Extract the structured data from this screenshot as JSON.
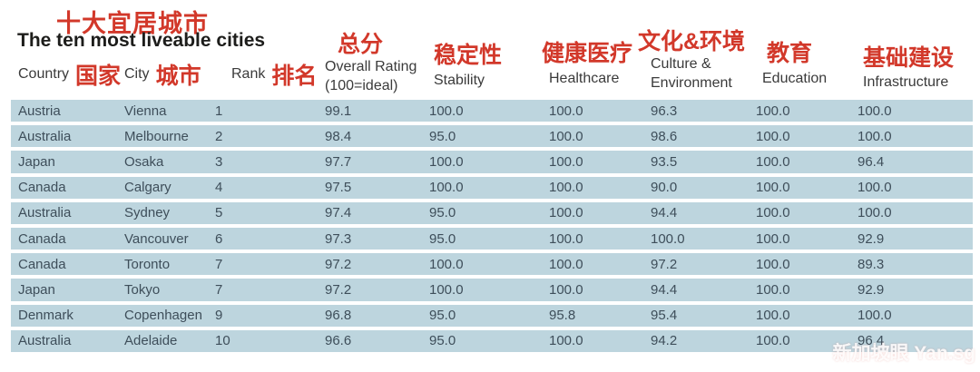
{
  "page": {
    "title_zh": "十大宜居城市",
    "title_en": "The ten most liveable cities"
  },
  "watermark": {
    "text": "新加坡眼 Yan.sg"
  },
  "colors": {
    "accent_red": "#d2382a",
    "row_background": "#bdd5de",
    "body_text": "#3e4e5a",
    "title_black": "#1d1d1b"
  },
  "columns": {
    "country": {
      "en": "Country",
      "zh": "国家"
    },
    "city": {
      "en": "City",
      "zh": "城市"
    },
    "rank": {
      "en": "Rank",
      "zh": "排名"
    },
    "overall": {
      "zh": "总分",
      "en": "Overall Rating",
      "sub": "(100=ideal)"
    },
    "stability": {
      "zh": "稳定性",
      "en": "Stability"
    },
    "healthcare": {
      "zh": "健康医疗",
      "en": "Healthcare"
    },
    "culture": {
      "zh": "文化&环境",
      "en_line1": "Culture &",
      "en_line2": "Environment"
    },
    "education": {
      "zh": "教育",
      "en": "Education"
    },
    "infrastructure": {
      "zh": "基础建设",
      "en": "Infrastructure"
    }
  },
  "chart_data": {
    "type": "table",
    "title": "The ten most liveable cities",
    "columns": [
      "Country",
      "City",
      "Rank",
      "Overall Rating (100=ideal)",
      "Stability",
      "Healthcare",
      "Culture & Environment",
      "Education",
      "Infrastructure"
    ],
    "rows": [
      {
        "country": "Austria",
        "city": "Vienna",
        "rank": "1",
        "overall": "99.1",
        "stability": "100.0",
        "healthcare": "100.0",
        "culture": "96.3",
        "education": "100.0",
        "infrastructure": "100.0"
      },
      {
        "country": "Australia",
        "city": "Melbourne",
        "rank": "2",
        "overall": "98.4",
        "stability": "95.0",
        "healthcare": "100.0",
        "culture": "98.6",
        "education": "100.0",
        "infrastructure": "100.0"
      },
      {
        "country": "Japan",
        "city": "Osaka",
        "rank": "3",
        "overall": "97.7",
        "stability": "100.0",
        "healthcare": "100.0",
        "culture": "93.5",
        "education": "100.0",
        "infrastructure": "96.4"
      },
      {
        "country": "Canada",
        "city": "Calgary",
        "rank": "4",
        "overall": "97.5",
        "stability": "100.0",
        "healthcare": "100.0",
        "culture": "90.0",
        "education": "100.0",
        "infrastructure": "100.0"
      },
      {
        "country": "Australia",
        "city": "Sydney",
        "rank": "5",
        "overall": "97.4",
        "stability": "95.0",
        "healthcare": "100.0",
        "culture": "94.4",
        "education": "100.0",
        "infrastructure": "100.0"
      },
      {
        "country": "Canada",
        "city": "Vancouver",
        "rank": "6",
        "overall": "97.3",
        "stability": "95.0",
        "healthcare": "100.0",
        "culture": "100.0",
        "education": "100.0",
        "infrastructure": "92.9"
      },
      {
        "country": "Canada",
        "city": "Toronto",
        "rank": "7",
        "overall": "97.2",
        "stability": "100.0",
        "healthcare": "100.0",
        "culture": "97.2",
        "education": "100.0",
        "infrastructure": "89.3"
      },
      {
        "country": "Japan",
        "city": "Tokyo",
        "rank": "7",
        "overall": "97.2",
        "stability": "100.0",
        "healthcare": "100.0",
        "culture": "94.4",
        "education": "100.0",
        "infrastructure": "92.9"
      },
      {
        "country": "Denmark",
        "city": "Copenhagen",
        "rank": "9",
        "overall": "96.8",
        "stability": "95.0",
        "healthcare": "95.8",
        "culture": "95.4",
        "education": "100.0",
        "infrastructure": "100.0"
      },
      {
        "country": "Australia",
        "city": "Adelaide",
        "rank": "10",
        "overall": "96.6",
        "stability": "95.0",
        "healthcare": "100.0",
        "culture": "94.2",
        "education": "100.0",
        "infrastructure": "96.4"
      }
    ]
  }
}
